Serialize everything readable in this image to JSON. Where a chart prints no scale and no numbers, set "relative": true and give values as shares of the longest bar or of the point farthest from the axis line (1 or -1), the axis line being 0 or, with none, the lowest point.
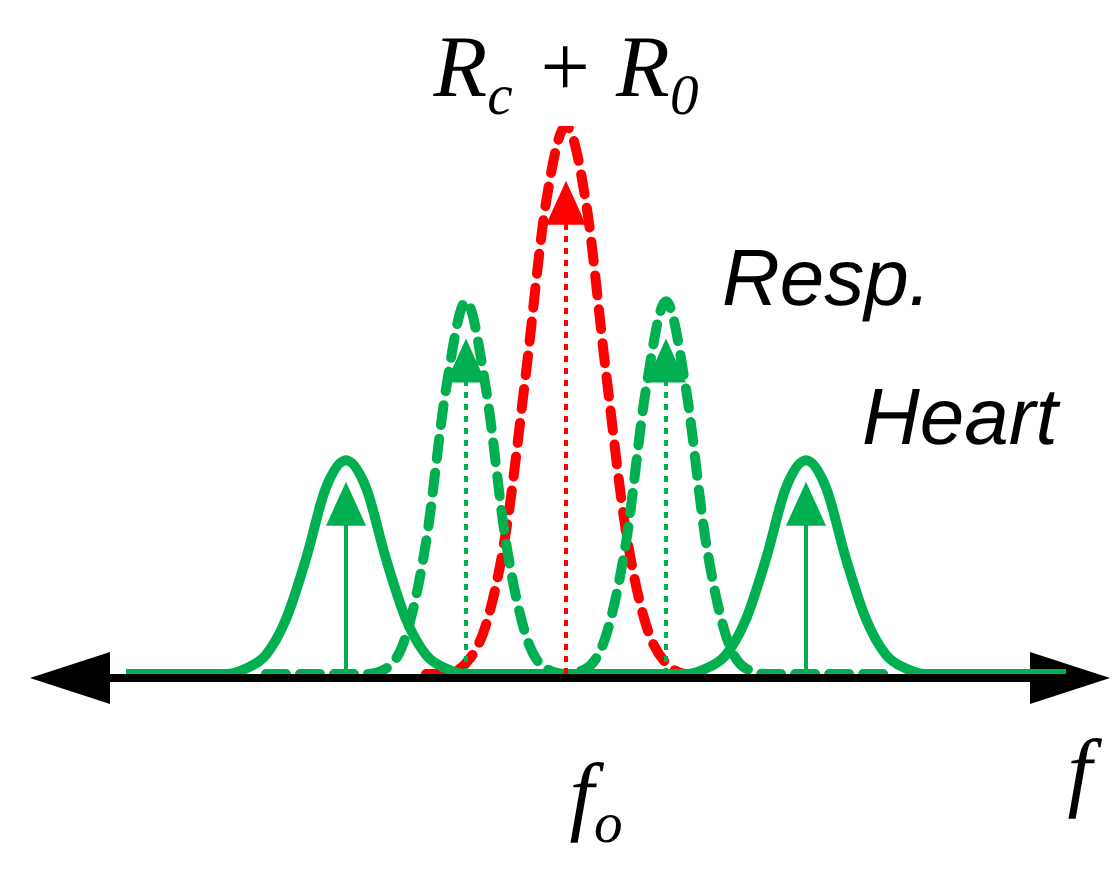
{
  "chart_data": {
    "type": "line",
    "relative": true,
    "annotations": [
      "f$_{o}$"
    ],
    "xlabel": "f",
    "marker": "none",
    "categories": [
      null,
      null,
      null,
      null,
      null,
      null,
      null,
      null,
      null,
      null,
      null,
      null,
      null,
      null,
      null,
      null,
      null,
      null,
      null,
      null,
      null,
      null,
      null,
      null,
      null,
      null,
      null,
      null,
      null,
      null,
      null,
      null,
      null,
      null,
      null,
      null,
      null,
      null,
      null,
      null,
      null,
      null,
      null,
      null,
      null,
      null,
      null,
      null
    ],
    "series": [
      {
        "name": "R$_{c}$ + R$_{0}$",
        "color": "#ff0000",
        "line_style": "dashed",
        "values": [
          null,
          null,
          null,
          null,
          null,
          null,
          null,
          null,
          null,
          null,
          null,
          null,
          null,
          null,
          null,
          0,
          0,
          0.02,
          0.09,
          0.26,
          0.55,
          0.86,
          1,
          0.86,
          0.55,
          0.26,
          0.09,
          0.02,
          0,
          0,
          null,
          null,
          null,
          null,
          null,
          null,
          null,
          null,
          null,
          null,
          null,
          null,
          null,
          null,
          null,
          null,
          null,
          null
        ]
      },
      {
        "name": "Resp.",
        "color": "#00b050",
        "line_style": "dashed",
        "values": [
          null,
          null,
          null,
          null,
          null,
          null,
          null,
          0,
          0,
          0,
          0,
          0,
          0,
          0.01,
          0.07,
          0.24,
          0.52,
          0.68,
          0.52,
          0.24,
          0.07,
          0.01,
          0,
          0.01,
          0.07,
          0.24,
          0.52,
          0.68,
          0.52,
          0.24,
          0.07,
          0.01,
          0,
          0,
          0,
          0,
          0,
          0,
          0,
          null,
          null,
          null,
          null,
          null,
          null,
          null,
          null,
          null
        ]
      },
      {
        "name": "Heart",
        "color": "#00b050",
        "line_style": "solid",
        "values": [
          0,
          0,
          0,
          0,
          0,
          0,
          0.01,
          0.035,
          0.1,
          0.21,
          0.34,
          0.39,
          0.34,
          0.21,
          0.1,
          0.035,
          0.01,
          0,
          0,
          0,
          0,
          0,
          0,
          0,
          0,
          0,
          0,
          0,
          0,
          0.01,
          0.035,
          0.1,
          0.21,
          0.34,
          0.39,
          0.34,
          0.21,
          0.1,
          0.035,
          0.01,
          0,
          0,
          0,
          0,
          0,
          0,
          0,
          0
        ]
      }
    ]
  }
}
